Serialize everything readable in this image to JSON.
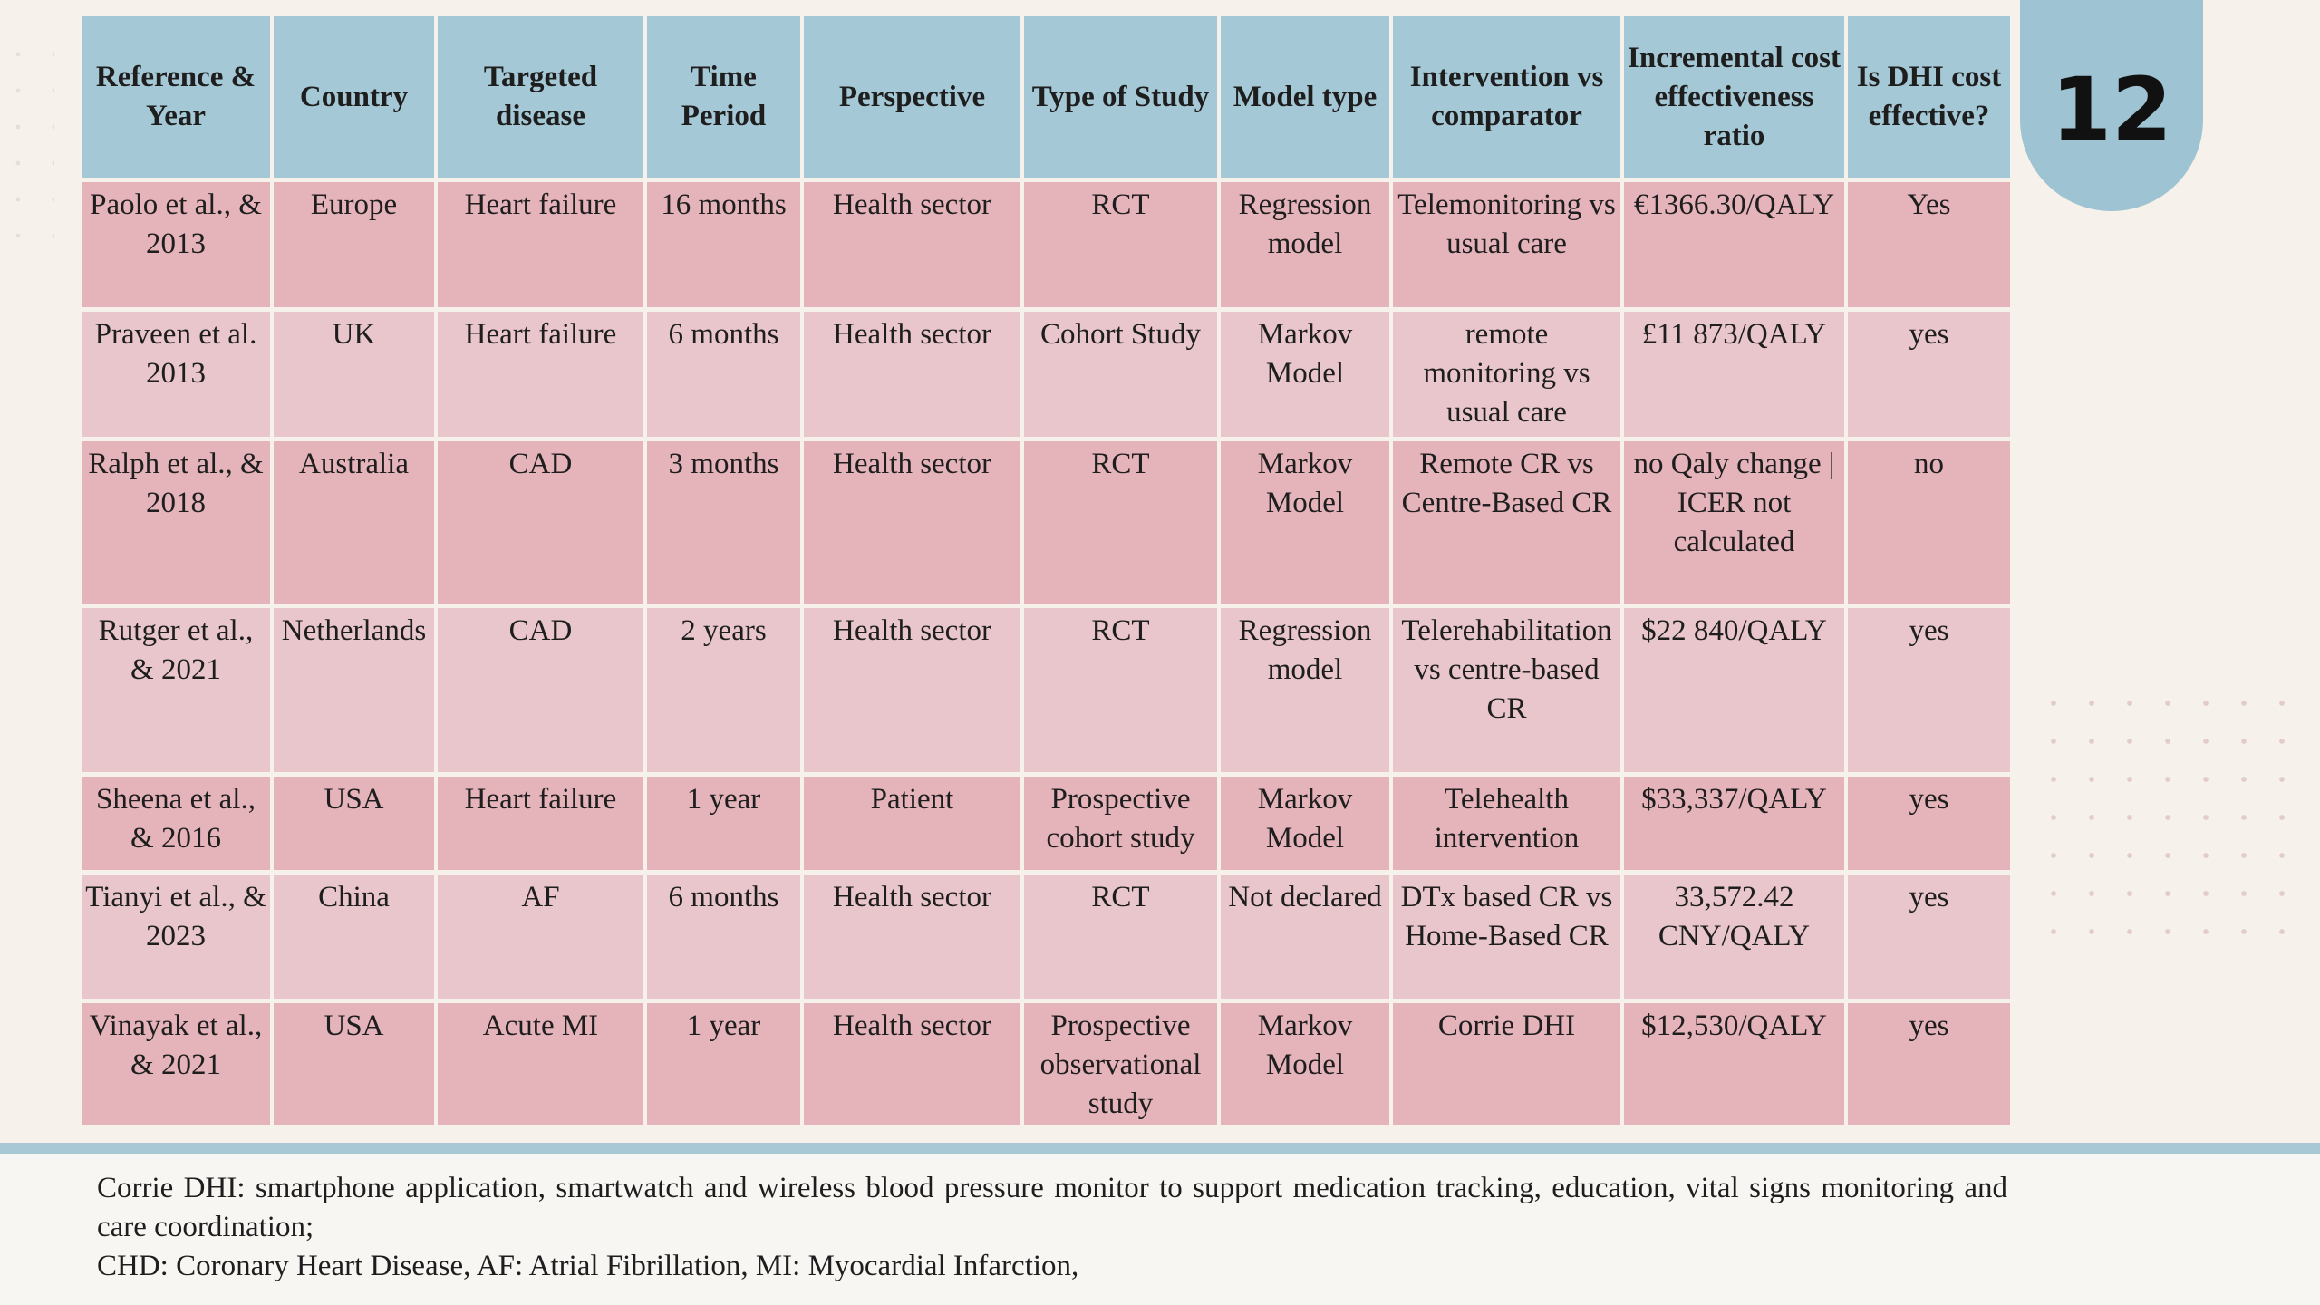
{
  "slide_number": "12",
  "table": {
    "headers": [
      "Reference & Year",
      "Country",
      "Targeted disease",
      "Time Period",
      "Perspective",
      "Type of Study",
      "Model type",
      "Intervention vs comparator",
      "Incremental cost effectiveness ratio",
      "Is DHI cost effective?"
    ],
    "rows": [
      [
        "Paolo et al., & 2013",
        "Europe",
        "Heart failure",
        "16 months",
        "Health sector",
        "RCT",
        "Regression model",
        "Telemonitoring vs usual care",
        "€1366.30/QALY",
        "Yes"
      ],
      [
        "Praveen et al. 2013",
        "UK",
        "Heart failure",
        "6 months",
        "Health sector",
        "Cohort Study",
        "Markov Model",
        "remote monitoring vs usual care",
        "£11 873/QALY",
        "yes"
      ],
      [
        "Ralph et al., & 2018",
        "Australia",
        "CAD",
        "3 months",
        "Health sector",
        "RCT",
        "Markov Model",
        "Remote CR vs Centre-Based CR",
        "no Qaly change | ICER not calculated",
        "no"
      ],
      [
        "Rutger et al., & 2021",
        "Netherlands",
        "CAD",
        "2 years",
        "Health sector",
        "RCT",
        "Regression model",
        "Telerehabilitation vs centre-based CR",
        "$22 840/QALY",
        "yes"
      ],
      [
        "Sheena et al., & 2016",
        "USA",
        "Heart failure",
        "1 year",
        "Patient",
        "Prospective cohort study",
        "Markov Model",
        "Telehealth intervention",
        "$33,337/QALY",
        "yes"
      ],
      [
        "Tianyi et al., & 2023",
        "China",
        "AF",
        "6 months",
        "Health sector",
        "RCT",
        "Not declared",
        "DTx based CR vs Home-Based CR",
        "33,572.42 CNY/QALY",
        "yes"
      ],
      [
        "Vinayak et al., & 2021",
        "USA",
        "Acute MI",
        "1 year",
        "Health sector",
        "Prospective observational study",
        "Markov Model",
        "Corrie DHI",
        "$12,530/QALY",
        "yes"
      ]
    ]
  },
  "footnotes": [
    "Corrie DHI: smartphone application, smartwatch and wireless blood pressure monitor to support medication tracking, education, vital signs monitoring and care coordination;",
    "CHD: Coronary Heart Disease, AF: Atrial Fibrillation, MI: Myocardial Infarction,"
  ],
  "colors": {
    "background": "#f6f1ea",
    "header_fill": "#a5c8d6",
    "row_fill_dark": "#e5b3ba",
    "row_fill_light": "#e8c6cb",
    "accent_blue": "#9ec3d3"
  }
}
